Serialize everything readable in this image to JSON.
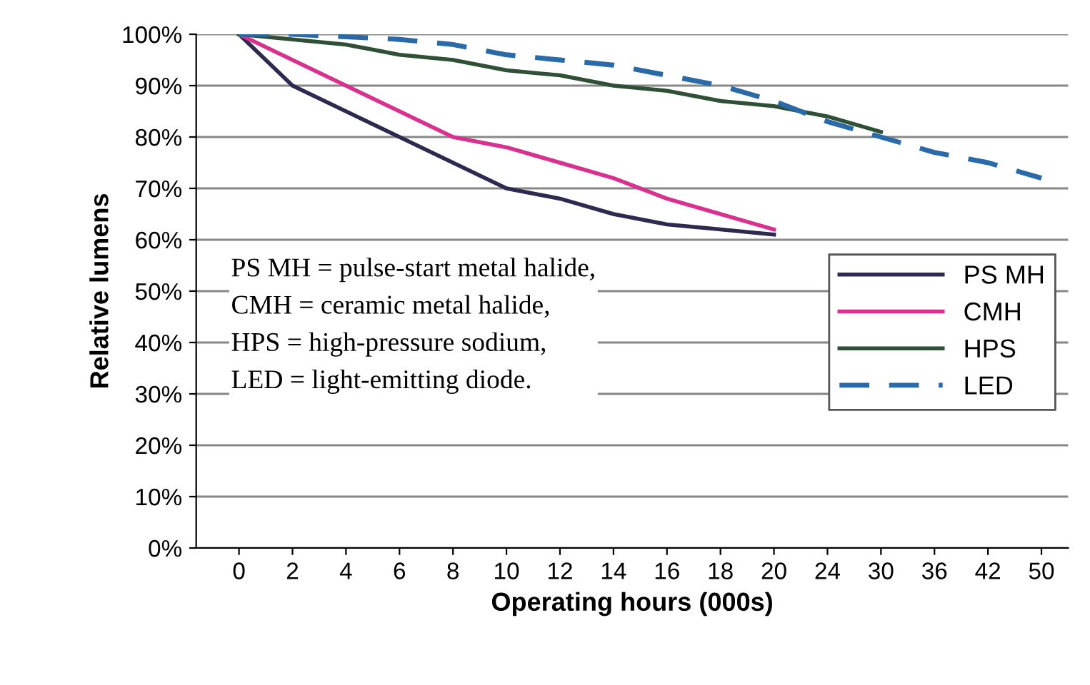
{
  "chart_data": {
    "type": "line",
    "xlabel": "Operating hours (000s)",
    "ylabel": "Relative lumens",
    "categories": [
      "0",
      "2",
      "4",
      "6",
      "8",
      "10",
      "12",
      "14",
      "16",
      "18",
      "20",
      "24",
      "30",
      "36",
      "42",
      "50"
    ],
    "series": [
      {
        "name": "PS MH",
        "color": "#2e2a4f",
        "line_style": "solid",
        "values": [
          100,
          90,
          85,
          80,
          75,
          70,
          68,
          65,
          63,
          62,
          61,
          null,
          null,
          null,
          null,
          null
        ]
      },
      {
        "name": "CMH",
        "color": "#d9318f",
        "line_style": "solid",
        "values": [
          100,
          95,
          90,
          85,
          80,
          78,
          75,
          72,
          68,
          65,
          62,
          null,
          null,
          null,
          null,
          null
        ]
      },
      {
        "name": "HPS",
        "color": "#2f4f36",
        "line_style": "solid",
        "values": [
          100,
          99,
          98,
          96,
          95,
          93,
          92,
          90,
          89,
          87,
          86,
          84,
          81,
          null,
          null,
          null
        ]
      },
      {
        "name": "LED",
        "color": "#2a6aa8",
        "line_style": "dashed",
        "values": [
          100,
          100,
          99.5,
          99,
          98,
          96,
          95,
          94,
          92,
          90,
          87,
          83,
          80,
          77,
          75,
          72
        ]
      }
    ],
    "ylim": [
      0,
      100
    ],
    "yticks": [
      {
        "value": 0,
        "label": "0%"
      },
      {
        "value": 10,
        "label": "10%"
      },
      {
        "value": 20,
        "label": "20%"
      },
      {
        "value": 30,
        "label": "30%"
      },
      {
        "value": 40,
        "label": "40%"
      },
      {
        "value": 50,
        "label": "50%"
      },
      {
        "value": 60,
        "label": "60%"
      },
      {
        "value": 70,
        "label": "70%"
      },
      {
        "value": 80,
        "label": "80%"
      },
      {
        "value": 90,
        "label": "90%"
      },
      {
        "value": 100,
        "label": "100%"
      }
    ],
    "grid": "y",
    "legend": "right",
    "marker": "none",
    "annotations": [
      "PS MH = pulse-start metal halide,\nCMH = ceramic metal halide,\nHPS = high-pressure sodium,\nLED = light-emitting diode."
    ]
  }
}
